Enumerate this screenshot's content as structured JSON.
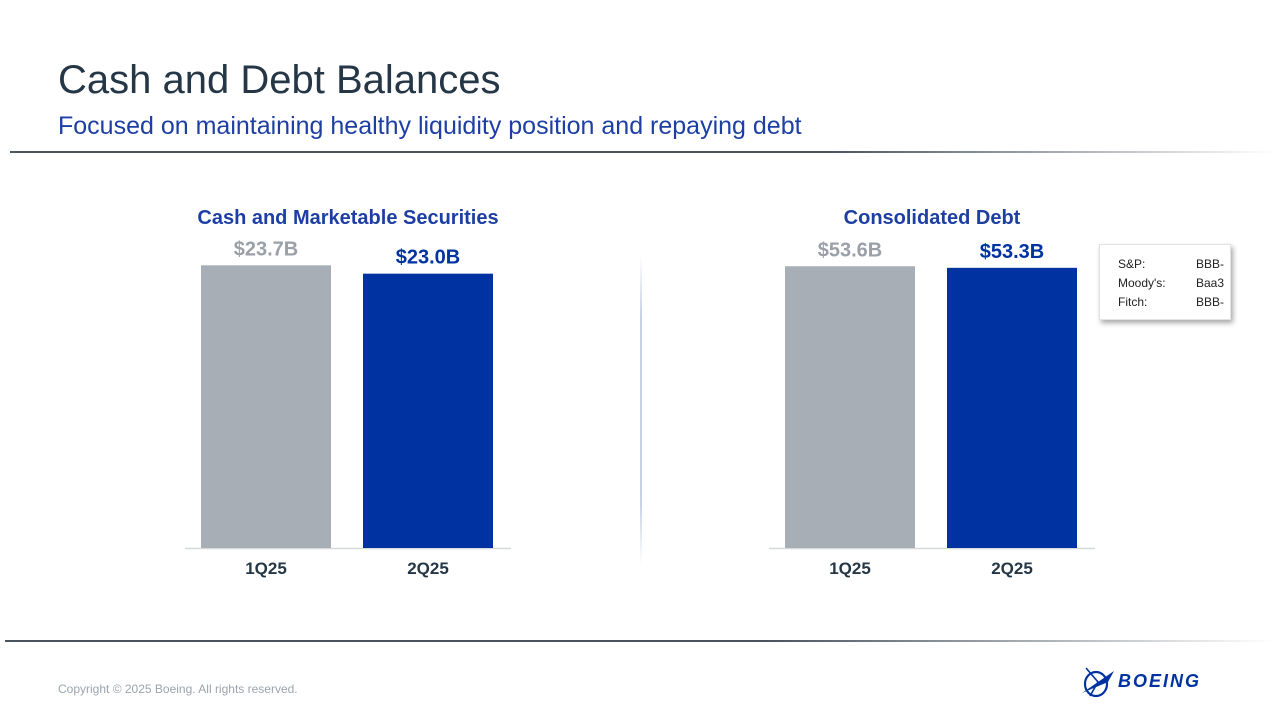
{
  "header": {
    "title": "Cash and Debt Balances",
    "subtitle": "Focused on maintaining healthy liquidity position and repaying debt"
  },
  "chart_data": [
    {
      "type": "bar",
      "title": "Cash and Marketable Securities",
      "categories": [
        "1Q25",
        "2Q25"
      ],
      "values": [
        23.7,
        23.0
      ],
      "data_labels": [
        "$23.7B",
        "$23.0B"
      ],
      "bar_colors": [
        "#a7aeb6",
        "#0033a1"
      ],
      "label_colors": [
        "#9aa0a7",
        "#0033a1"
      ],
      "ylim": [
        0,
        27.5
      ],
      "xlabel": "",
      "ylabel": "",
      "grid": false
    },
    {
      "type": "bar",
      "title": "Consolidated Debt",
      "categories": [
        "1Q25",
        "2Q25"
      ],
      "values": [
        53.6,
        53.3
      ],
      "data_labels": [
        "$53.6B",
        "$53.3B"
      ],
      "bar_colors": [
        "#a7aeb6",
        "#0033a1"
      ],
      "label_colors": [
        "#9aa0a7",
        "#0033a1"
      ],
      "ylim": [
        0,
        62.4
      ],
      "xlabel": "",
      "ylabel": "",
      "grid": false
    }
  ],
  "credit_ratings": [
    {
      "agency": "S&P:",
      "rating": "BBB-"
    },
    {
      "agency": "Moody's:",
      "rating": "Baa3"
    },
    {
      "agency": "Fitch:",
      "rating": "BBB-"
    }
  ],
  "footer": {
    "copyright": "Copyright © 2025 Boeing. All rights reserved.",
    "logo_text": "BOEING"
  },
  "colors": {
    "title": "#253746",
    "accent": "#1d3fa3",
    "bar_current": "#0033a1",
    "bar_prior": "#a7aeb6"
  }
}
